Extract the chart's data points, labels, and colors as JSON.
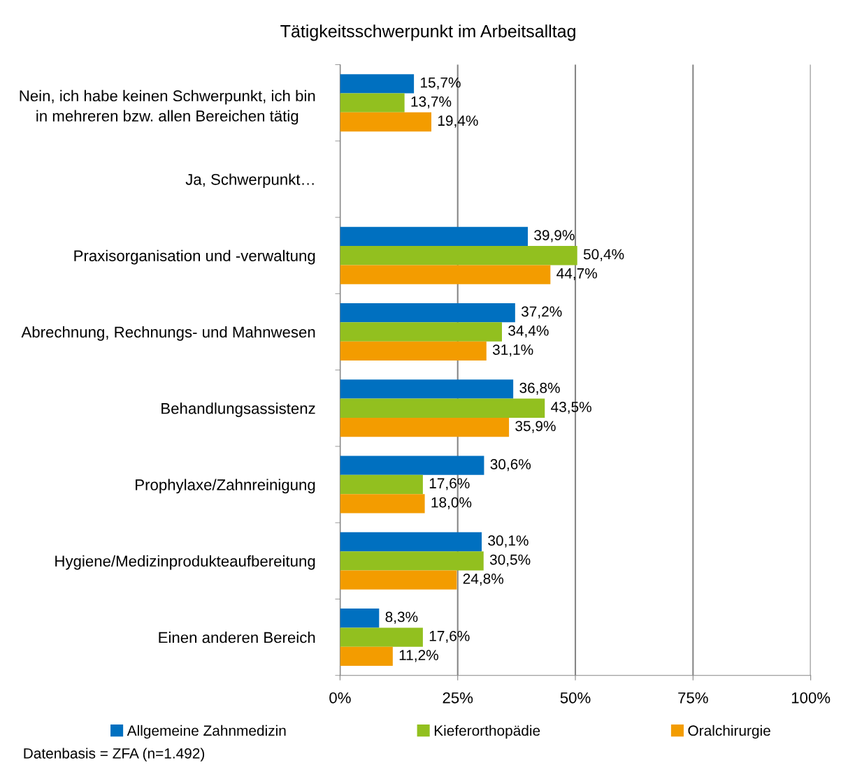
{
  "chart_data": {
    "type": "bar",
    "orientation": "horizontal",
    "title": "Tätigkeitsschwerpunkt im Arbeitsalltag",
    "categories": [
      "Nein, ich habe keinen Schwerpunkt, ich bin in mehreren bzw. allen Bereichen tätig",
      "Ja, Schwerpunkt…",
      "Praxisorganisation und -verwaltung",
      "Abrechnung, Rechnungs- und Mahnwesen",
      "Behandlungsassistenz",
      "Prophylaxe/Zahnreinigung",
      "Hygiene/Medizinprodukteaufbereitung",
      "Einen anderen Bereich"
    ],
    "series": [
      {
        "name": "Allgemeine Zahnmedizin",
        "color": "#0070c0",
        "values": [
          15.7,
          null,
          39.9,
          37.2,
          36.8,
          30.6,
          30.1,
          8.3
        ],
        "value_labels": [
          "15,7%",
          null,
          "39,9%",
          "37,2%",
          "36,8%",
          "30,6%",
          "30,1%",
          "8,3%"
        ]
      },
      {
        "name": "Kieferorthopädie",
        "color": "#92c01f",
        "values": [
          13.7,
          null,
          50.4,
          34.4,
          43.5,
          17.6,
          30.5,
          17.6
        ],
        "value_labels": [
          "13,7%",
          null,
          "50,4%",
          "34,4%",
          "43,5%",
          "17,6%",
          "30,5%",
          "17,6%"
        ]
      },
      {
        "name": "Oralchirurgie",
        "color": "#f39c00",
        "values": [
          19.4,
          null,
          44.7,
          31.1,
          35.9,
          18.0,
          24.8,
          11.2
        ],
        "value_labels": [
          "19,4%",
          null,
          "44,7%",
          "31,1%",
          "35,9%",
          "18,0%",
          "24,8%",
          "11,2%"
        ]
      }
    ],
    "xlim": [
      0,
      100
    ],
    "xticks": [
      {
        "value": 0,
        "label": "0%"
      },
      {
        "value": 25,
        "label": "25%"
      },
      {
        "value": 50,
        "label": "50%"
      },
      {
        "value": 75,
        "label": "75%"
      },
      {
        "value": 100,
        "label": "100%"
      }
    ],
    "grid": "x",
    "legend": "bottom",
    "annotations": [
      "Datenbasis = ZFA (n=1.492)"
    ]
  }
}
